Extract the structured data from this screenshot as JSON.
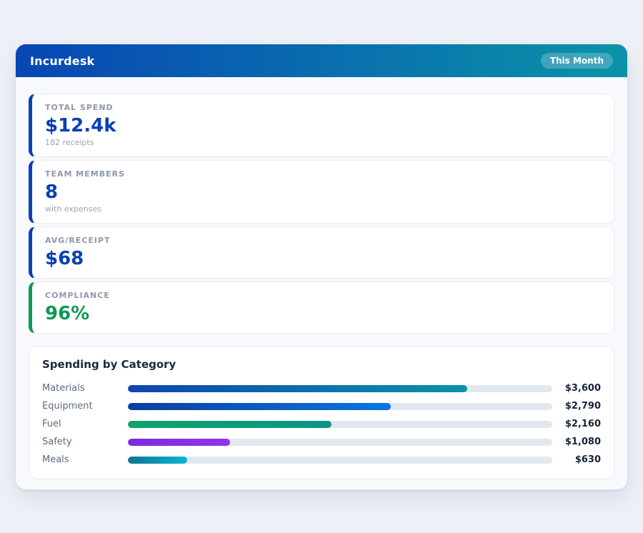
{
  "app": {
    "title": "Incurdesk",
    "period_badge": "This Month"
  },
  "stats": [
    {
      "label": "TOTAL SPEND",
      "value": "$12.4k",
      "sub": "182 receipts",
      "accent": "#0a3fb8"
    },
    {
      "label": "TEAM MEMBERS",
      "value": "8",
      "sub": "with expenses",
      "accent": "#0a3fb8"
    },
    {
      "label": "AVG/RECEIPT",
      "value": "$68",
      "sub": "",
      "accent": "#0a3fb8"
    },
    {
      "label": "COMPLIANCE",
      "value": "96%",
      "sub": "",
      "accent": "#0c9a56"
    }
  ],
  "chart_data": {
    "type": "bar",
    "orientation": "horizontal",
    "title": "Spending by Category",
    "categories": [
      "Materials",
      "Equipment",
      "Fuel",
      "Safety",
      "Meals"
    ],
    "values": [
      3600,
      2790,
      2160,
      1080,
      630
    ],
    "value_labels": [
      "$3,600",
      "$2,790",
      "$2,160",
      "$1,080",
      "$630"
    ],
    "xlim": [
      0,
      4500
    ],
    "grid": false,
    "legend": false,
    "track_color": "#e2e8f0",
    "bar_gradients": [
      [
        "#0d45b0",
        "#0a93a8"
      ],
      [
        "#0c3f9e",
        "#0b76e0"
      ],
      [
        "#0ca567",
        "#0d9488"
      ],
      [
        "#7c2bd9",
        "#9333ea"
      ],
      [
        "#0e7490",
        "#06b6d4"
      ]
    ]
  },
  "colors": {
    "page_bg": "#edf1f7",
    "panel_bg": "#f7f9fc",
    "header_gradient_start": "#0846b4",
    "header_gradient_end": "#0b93a8",
    "accent_blue": "#0a3fb8",
    "accent_green": "#0c9a56",
    "value_text": "#16243a",
    "label_text": "#8e99ab"
  }
}
